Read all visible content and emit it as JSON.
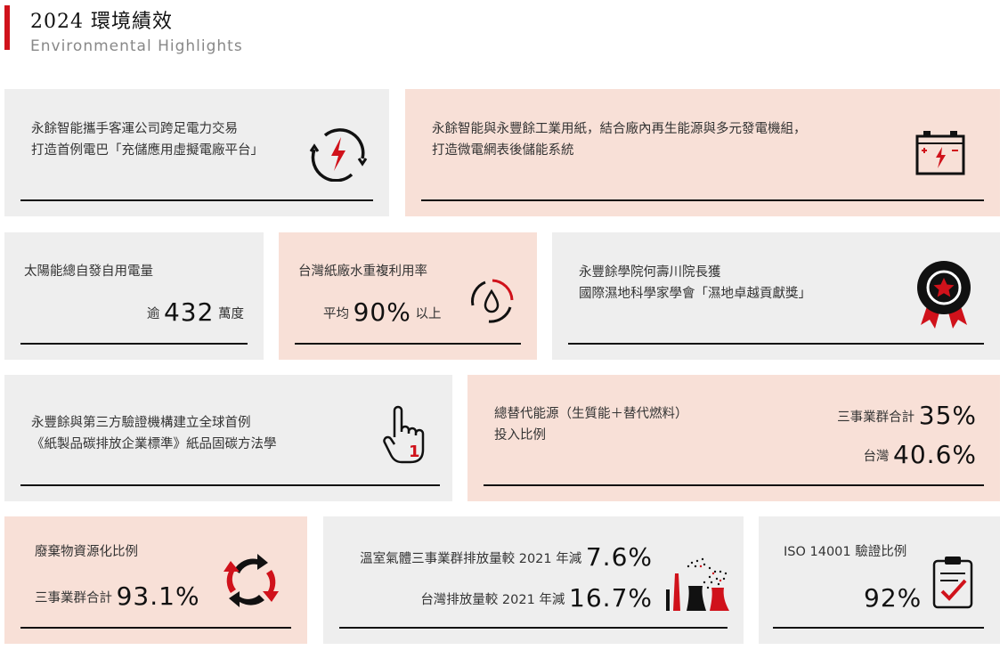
{
  "header": {
    "title": "2024 環境績效",
    "subtitle": "Environmental Highlights"
  },
  "colors": {
    "accent": "#d0121b",
    "gray_card": "#eeeeee",
    "peach_card": "#f8e0d7"
  },
  "cards": [
    {
      "lines": [
        "永餘智能攜手客運公司跨足電力交易",
        "打造首例電巴「充儲應用虛擬電廠平台」"
      ],
      "icon": "lightning-cycle-icon"
    },
    {
      "lines": [
        "永餘智能與永豐餘工業用紙，結合廠內再生能源與多元發電機組，",
        "打造微電網表後儲能系統"
      ],
      "icon": "battery-icon"
    },
    {
      "label": "太陽能總自發自用電量",
      "prefix": "逾",
      "value": "432",
      "suffix": "萬度"
    },
    {
      "label": "台灣紙廠水重複利用率",
      "prefix": "平均",
      "value": "90%",
      "suffix": "以上",
      "icon": "water-recycle-icon"
    },
    {
      "lines": [
        "永豐餘學院何壽川院長獲",
        "國際濕地科學家學會「濕地卓越貢獻獎」"
      ],
      "icon": "award-medal-icon"
    },
    {
      "lines": [
        "永豐餘與第三方驗證機構建立全球首例",
        "《紙製品碳排放企業標準》紙品固碳方法學"
      ],
      "icon": "hand-pointer-icon"
    },
    {
      "lines": [
        "總替代能源（生質能＋替代燃料）",
        "投入比例"
      ],
      "rows": [
        {
          "label": "三事業群合計",
          "value": "35%"
        },
        {
          "label": "台灣",
          "value": "40.6%"
        }
      ]
    },
    {
      "label": "廢棄物資源化比例",
      "prefix": "三事業群合計",
      "value": "93.1%",
      "icon": "recycle-arrows-icon"
    },
    {
      "rows": [
        {
          "label": "溫室氣體三事業群排放量較 2021 年減",
          "value": "7.6%"
        },
        {
          "label": "台灣排放量較 2021 年減",
          "value": "16.7%"
        }
      ],
      "icon": "factory-emissions-icon"
    },
    {
      "label": "ISO 14001 驗證比例",
      "value": "92%",
      "icon": "clipboard-check-icon"
    }
  ]
}
